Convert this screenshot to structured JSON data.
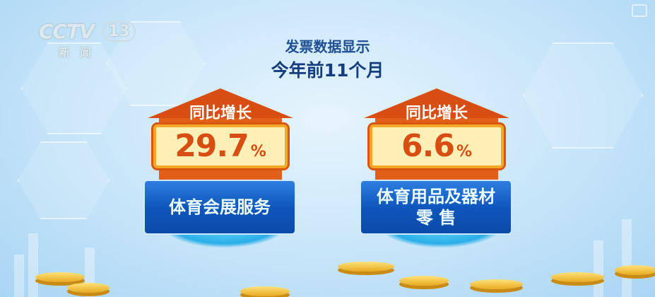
{
  "channel_logo": {
    "brand": "CCTV",
    "number": "13",
    "name": "新闻"
  },
  "header": {
    "line1": "发票数据显示",
    "line2": "今年前11个月"
  },
  "cards": [
    {
      "arrow_label": "同比增长",
      "value": "29.7",
      "unit": "%",
      "category": "体育会展服务",
      "category_line2": ""
    },
    {
      "arrow_label": "同比增长",
      "value": "6.6",
      "unit": "%",
      "category": "体育用品及器材",
      "category_line2": "零 售"
    }
  ],
  "colors": {
    "arrow": "#d84e12",
    "value_box": "#fff0b8",
    "category_box": "#0f57bd",
    "title": "#1f4f93"
  }
}
